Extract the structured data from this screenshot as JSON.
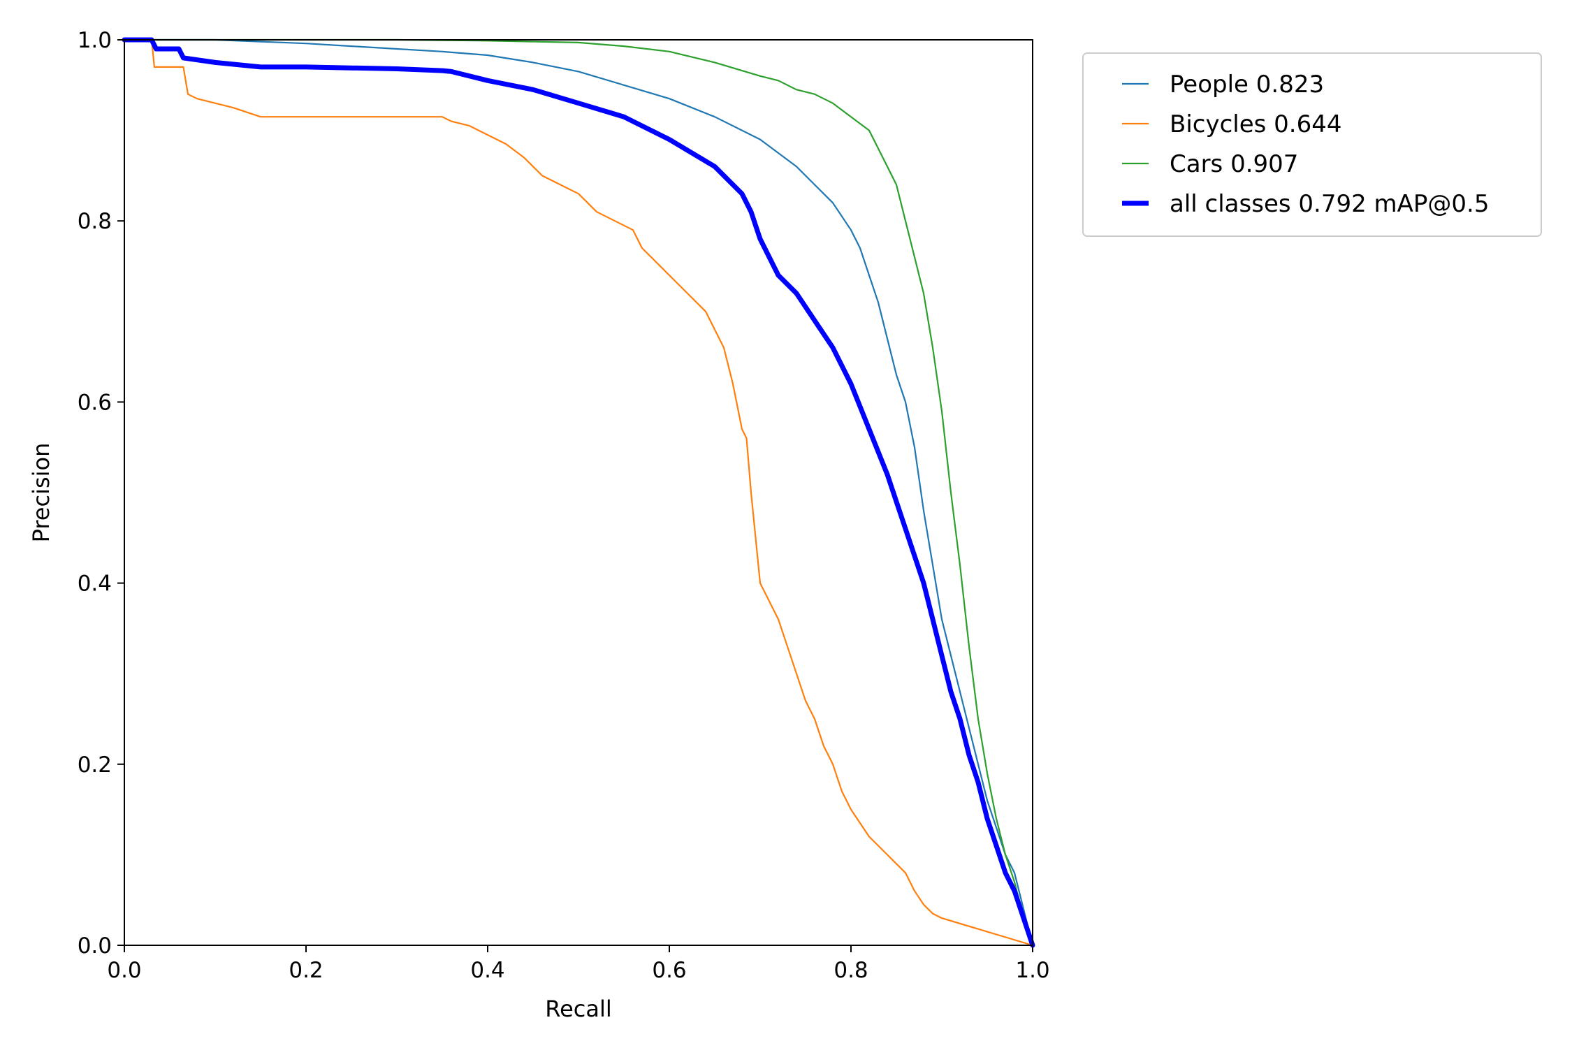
{
  "chart_data": {
    "type": "line",
    "title": "",
    "xlabel": "Recall",
    "ylabel": "Precision",
    "xlim": [
      0,
      1
    ],
    "ylim": [
      0,
      1
    ],
    "xticks": [
      "0.0",
      "0.2",
      "0.4",
      "0.6",
      "0.8",
      "1.0"
    ],
    "yticks": [
      "0.0",
      "0.2",
      "0.4",
      "0.6",
      "0.8",
      "1.0"
    ],
    "grid": false,
    "legend_position": "outside-top-right",
    "series": [
      {
        "name": "People 0.823",
        "color": "#1f77b4",
        "width": "thin",
        "x": [
          0.0,
          0.05,
          0.1,
          0.15,
          0.2,
          0.25,
          0.3,
          0.35,
          0.4,
          0.45,
          0.5,
          0.55,
          0.6,
          0.65,
          0.7,
          0.72,
          0.74,
          0.76,
          0.78,
          0.8,
          0.81,
          0.82,
          0.83,
          0.84,
          0.85,
          0.86,
          0.87,
          0.88,
          0.89,
          0.9,
          0.91,
          0.92,
          0.93,
          0.94,
          0.95,
          0.96,
          0.97,
          0.98,
          1.0
        ],
        "y": [
          1.0,
          1.0,
          1.0,
          0.998,
          0.996,
          0.993,
          0.99,
          0.987,
          0.983,
          0.975,
          0.965,
          0.95,
          0.935,
          0.915,
          0.89,
          0.875,
          0.86,
          0.84,
          0.82,
          0.79,
          0.77,
          0.74,
          0.71,
          0.67,
          0.63,
          0.6,
          0.55,
          0.48,
          0.42,
          0.36,
          0.32,
          0.28,
          0.24,
          0.2,
          0.16,
          0.13,
          0.1,
          0.08,
          0.0
        ]
      },
      {
        "name": "Bicycles 0.644",
        "color": "#ff7f0e",
        "width": "thin",
        "x": [
          0.0,
          0.03,
          0.033,
          0.065,
          0.07,
          0.08,
          0.1,
          0.12,
          0.15,
          0.2,
          0.25,
          0.3,
          0.35,
          0.36,
          0.38,
          0.4,
          0.42,
          0.44,
          0.46,
          0.48,
          0.5,
          0.52,
          0.54,
          0.56,
          0.57,
          0.58,
          0.6,
          0.62,
          0.64,
          0.65,
          0.66,
          0.67,
          0.68,
          0.685,
          0.69,
          0.695,
          0.7,
          0.71,
          0.72,
          0.73,
          0.74,
          0.75,
          0.76,
          0.77,
          0.78,
          0.79,
          0.8,
          0.82,
          0.84,
          0.86,
          0.87,
          0.88,
          0.89,
          0.9,
          1.0
        ],
        "y": [
          1.0,
          1.0,
          0.97,
          0.97,
          0.94,
          0.935,
          0.93,
          0.925,
          0.915,
          0.915,
          0.915,
          0.915,
          0.915,
          0.91,
          0.905,
          0.895,
          0.885,
          0.87,
          0.85,
          0.84,
          0.83,
          0.81,
          0.8,
          0.79,
          0.77,
          0.76,
          0.74,
          0.72,
          0.7,
          0.68,
          0.66,
          0.62,
          0.57,
          0.56,
          0.5,
          0.45,
          0.4,
          0.38,
          0.36,
          0.33,
          0.3,
          0.27,
          0.25,
          0.22,
          0.2,
          0.17,
          0.15,
          0.12,
          0.1,
          0.08,
          0.06,
          0.045,
          0.035,
          0.03,
          0.0
        ]
      },
      {
        "name": "Cars 0.907",
        "color": "#2ca02c",
        "width": "thin",
        "x": [
          0.0,
          0.1,
          0.2,
          0.3,
          0.4,
          0.5,
          0.55,
          0.6,
          0.65,
          0.7,
          0.72,
          0.74,
          0.76,
          0.78,
          0.8,
          0.82,
          0.83,
          0.84,
          0.85,
          0.86,
          0.87,
          0.88,
          0.89,
          0.9,
          0.91,
          0.92,
          0.93,
          0.94,
          0.95,
          0.96,
          0.97,
          0.98,
          0.99,
          1.0
        ],
        "y": [
          1.0,
          1.0,
          1.0,
          1.0,
          0.999,
          0.997,
          0.993,
          0.987,
          0.975,
          0.96,
          0.955,
          0.945,
          0.94,
          0.93,
          0.915,
          0.9,
          0.88,
          0.86,
          0.84,
          0.8,
          0.76,
          0.72,
          0.66,
          0.59,
          0.5,
          0.42,
          0.33,
          0.25,
          0.19,
          0.14,
          0.1,
          0.07,
          0.03,
          0.0
        ]
      },
      {
        "name": "all classes 0.792 mAP@0.5",
        "color": "#0000ff",
        "width": "thick",
        "x": [
          0.0,
          0.03,
          0.035,
          0.06,
          0.065,
          0.1,
          0.15,
          0.2,
          0.25,
          0.3,
          0.35,
          0.36,
          0.4,
          0.45,
          0.5,
          0.55,
          0.6,
          0.65,
          0.68,
          0.69,
          0.7,
          0.72,
          0.74,
          0.76,
          0.78,
          0.8,
          0.82,
          0.84,
          0.85,
          0.86,
          0.87,
          0.88,
          0.89,
          0.9,
          0.91,
          0.92,
          0.93,
          0.94,
          0.95,
          0.96,
          0.97,
          0.98,
          1.0
        ],
        "y": [
          1.0,
          1.0,
          0.99,
          0.99,
          0.98,
          0.975,
          0.97,
          0.97,
          0.969,
          0.968,
          0.966,
          0.965,
          0.955,
          0.945,
          0.93,
          0.915,
          0.89,
          0.86,
          0.83,
          0.81,
          0.78,
          0.74,
          0.72,
          0.69,
          0.66,
          0.62,
          0.57,
          0.52,
          0.49,
          0.46,
          0.43,
          0.4,
          0.36,
          0.32,
          0.28,
          0.25,
          0.21,
          0.18,
          0.14,
          0.11,
          0.08,
          0.06,
          0.0
        ]
      }
    ]
  }
}
